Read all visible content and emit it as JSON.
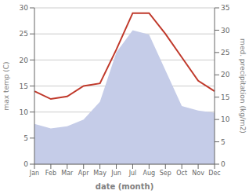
{
  "chart_data": {
    "type": "line",
    "categories": [
      "Jan",
      "Feb",
      "Mar",
      "Apr",
      "May",
      "Jun",
      "Jul",
      "Aug",
      "Sep",
      "Oct",
      "Nov",
      "Dec"
    ],
    "xlabel": "date (month)",
    "ylabel": "max temp (C)",
    "y2label": "med. precipitation (kg/m2)",
    "series": [
      {
        "type": "area",
        "axis": "y2",
        "color": "#c5cce8",
        "values": [
          9.0,
          8.0,
          8.5,
          10.0,
          14.0,
          25.0,
          30.0,
          29.0,
          21.0,
          13.0,
          12.0,
          11.5
        ]
      },
      {
        "type": "line",
        "color": "#c0392b",
        "values": [
          14.0,
          12.5,
          13.0,
          15.0,
          15.5,
          22.0,
          29.0,
          29.0,
          25.0,
          20.5,
          16.0,
          14.0
        ]
      }
    ],
    "ylim": [
      0,
      30
    ],
    "yticks": [
      0,
      5,
      10,
      15,
      20,
      25,
      30
    ],
    "y2lim": [
      0,
      35
    ],
    "y2ticks": [
      0,
      5,
      10,
      15,
      20,
      25,
      30,
      35
    ],
    "grid": true
  }
}
